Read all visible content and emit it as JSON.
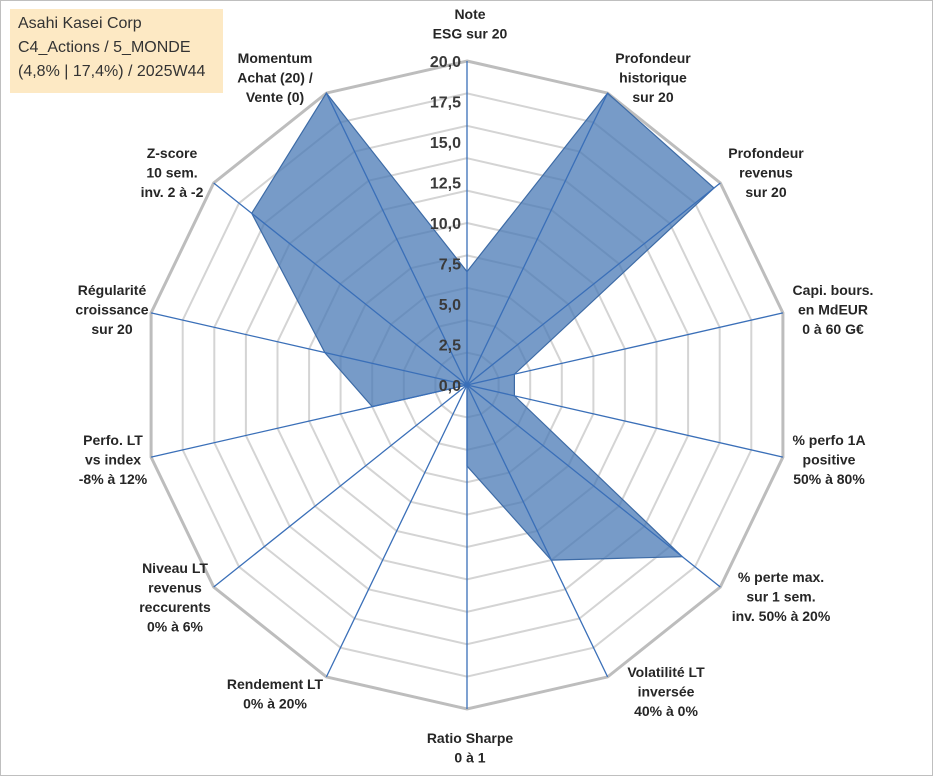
{
  "header": {
    "line1": "Asahi Kasei Corp",
    "line2": "C4_Actions / 5_MONDE",
    "line3": "(4,8% | 17,4%) / 2025W44"
  },
  "chart_data": {
    "type": "radar",
    "rmin": 0,
    "rmax": 20,
    "ticks": [
      "0,0",
      "2,5",
      "5,0",
      "7,5",
      "10,0",
      "12,5",
      "15,0",
      "17,5",
      "20,0"
    ],
    "tick_values": [
      0,
      2.5,
      5,
      7.5,
      10,
      12.5,
      15,
      17.5,
      20
    ],
    "grid": true,
    "axes": [
      {
        "label_lines": [
          "Note",
          "ESG sur 20"
        ]
      },
      {
        "label_lines": [
          "Profondeur",
          "historique",
          "sur 20"
        ]
      },
      {
        "label_lines": [
          "Profondeur",
          "revenus",
          "sur 20"
        ]
      },
      {
        "label_lines": [
          "Capi. bours.",
          "en MdEUR",
          "0 à 60 G€"
        ]
      },
      {
        "label_lines": [
          "% perfo 1A",
          "positive",
          "50% à 80%"
        ]
      },
      {
        "label_lines": [
          "% perte max.",
          "sur 1 sem.",
          "inv. 50% à 20%"
        ]
      },
      {
        "label_lines": [
          "Volatilité LT",
          "inversée",
          "40% à 0%"
        ]
      },
      {
        "label_lines": [
          "Ratio Sharpe",
          "0 à 1"
        ]
      },
      {
        "label_lines": [
          "Rendement LT",
          "0% à 20%"
        ]
      },
      {
        "label_lines": [
          "Niveau LT",
          "revenus",
          "reccurents",
          "0% à 6%"
        ]
      },
      {
        "label_lines": [
          "Perfo. LT",
          "vs index",
          "-8% à 12%"
        ]
      },
      {
        "label_lines": [
          "Régularité",
          "croissance",
          "sur 20"
        ]
      },
      {
        "label_lines": [
          "Z-score",
          "10 sem.",
          "inv. 2 à -2"
        ]
      },
      {
        "label_lines": [
          "Momentum",
          "Achat (20) /",
          "Vente (0)"
        ]
      }
    ],
    "series": [
      {
        "name": "Asahi Kasei Corp",
        "values": [
          7,
          20,
          19.5,
          3,
          3,
          17,
          12,
          5,
          0,
          0,
          6,
          9,
          17,
          20
        ],
        "color": "#4a7ab5"
      }
    ]
  }
}
